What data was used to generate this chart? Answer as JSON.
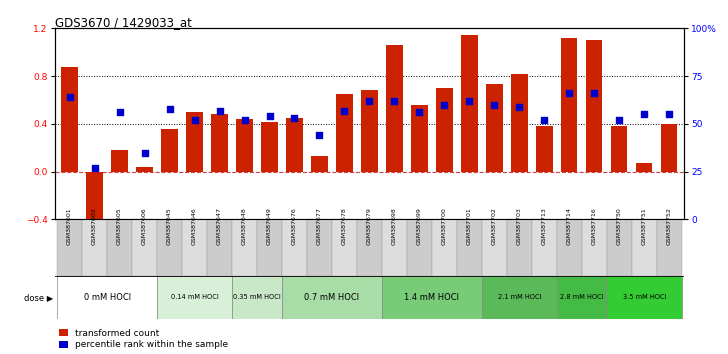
{
  "title": "GDS3670 / 1429033_at",
  "samples": [
    "GSM387601",
    "GSM387602",
    "GSM387605",
    "GSM387606",
    "GSM387645",
    "GSM387646",
    "GSM387647",
    "GSM387648",
    "GSM387649",
    "GSM387676",
    "GSM387677",
    "GSM387678",
    "GSM387679",
    "GSM387698",
    "GSM387699",
    "GSM387700",
    "GSM387701",
    "GSM387702",
    "GSM387703",
    "GSM387713",
    "GSM387714",
    "GSM387716",
    "GSM387750",
    "GSM387751",
    "GSM387752"
  ],
  "transformed_count": [
    0.88,
    -0.52,
    0.18,
    0.04,
    0.36,
    0.5,
    0.48,
    0.44,
    0.42,
    0.45,
    0.13,
    0.65,
    0.68,
    1.06,
    0.56,
    0.7,
    1.14,
    0.73,
    0.82,
    0.38,
    1.12,
    1.1,
    0.38,
    0.07,
    0.4
  ],
  "percentile_rank": [
    64,
    27,
    56,
    35,
    58,
    52,
    57,
    52,
    54,
    53,
    44,
    57,
    62,
    62,
    56,
    60,
    62,
    60,
    59,
    52,
    66,
    66,
    52,
    55,
    55
  ],
  "dose_groups": [
    {
      "label": "0 mM HOCl",
      "start": 0,
      "end": 3,
      "color": "#ffffff"
    },
    {
      "label": "0.14 mM HOCl",
      "start": 4,
      "end": 6,
      "color": "#d8f0d8"
    },
    {
      "label": "0.35 mM HOCl",
      "start": 7,
      "end": 8,
      "color": "#c8e8c8"
    },
    {
      "label": "0.7 mM HOCl",
      "start": 9,
      "end": 12,
      "color": "#a8dda8"
    },
    {
      "label": "1.4 mM HOCl",
      "start": 13,
      "end": 16,
      "color": "#78cc78"
    },
    {
      "label": "2.1 mM HOCl",
      "start": 17,
      "end": 19,
      "color": "#5aba5a"
    },
    {
      "label": "2.8 mM HOCl",
      "start": 20,
      "end": 21,
      "color": "#44bb44"
    },
    {
      "label": "3.5 mM HOCl",
      "start": 22,
      "end": 24,
      "color": "#33cc33"
    }
  ],
  "bar_color": "#cc2200",
  "dot_color": "#0000cc",
  "ylim_left": [
    -0.4,
    1.2
  ],
  "yticks_left": [
    -0.4,
    0.0,
    0.4,
    0.8,
    1.2
  ],
  "ytick_right_labels": [
    "0",
    "25",
    "50",
    "75",
    "100%"
  ],
  "ytick_right_vals": [
    0,
    25,
    50,
    75,
    100
  ],
  "hlines_dotted": [
    0.4,
    0.8
  ],
  "background_color": "#ffffff"
}
